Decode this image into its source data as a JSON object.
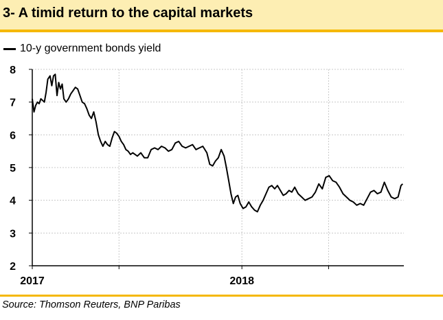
{
  "header": {
    "title": "3- A timid return to the capital markets"
  },
  "legend": {
    "label": "10-y government bonds yield"
  },
  "footer": {
    "source": "Source: Thomson Reuters, BNP Paribas"
  },
  "colors": {
    "accent": "#f5b800",
    "title_bg": "#fdeeb3",
    "line": "#000000",
    "grid": "#c8c8c8"
  },
  "chart_data": {
    "type": "line",
    "title": "",
    "xlabel": "",
    "ylabel": "",
    "ylim": [
      2,
      8
    ],
    "yticks": [
      2,
      3,
      4,
      5,
      6,
      7,
      8
    ],
    "xlim": [
      "2017-01-01",
      "2018-10-10"
    ],
    "xtick_labels": [
      "2017",
      "2018"
    ],
    "xtick_dates": [
      "2017-01-01",
      "2018-01-01"
    ],
    "xgrid_dates": [
      "2017-01-01",
      "2017-06-01",
      "2018-01-01",
      "2018-06-01"
    ],
    "grid": true,
    "legend_position": "top-left",
    "series": [
      {
        "name": "10-y government bonds yield",
        "x": [
          "2017-01-01",
          "2017-01-04",
          "2017-01-07",
          "2017-01-10",
          "2017-01-13",
          "2017-01-16",
          "2017-01-19",
          "2017-01-22",
          "2017-01-25",
          "2017-01-28",
          "2017-02-01",
          "2017-02-04",
          "2017-02-07",
          "2017-02-10",
          "2017-02-13",
          "2017-02-16",
          "2017-02-19",
          "2017-02-22",
          "2017-02-25",
          "2017-03-01",
          "2017-03-05",
          "2017-03-09",
          "2017-03-13",
          "2017-03-17",
          "2017-03-21",
          "2017-03-25",
          "2017-03-29",
          "2017-04-02",
          "2017-04-06",
          "2017-04-10",
          "2017-04-14",
          "2017-04-18",
          "2017-04-22",
          "2017-04-26",
          "2017-04-30",
          "2017-05-04",
          "2017-05-08",
          "2017-05-12",
          "2017-05-16",
          "2017-05-20",
          "2017-05-24",
          "2017-05-28",
          "2017-06-01",
          "2017-06-05",
          "2017-06-09",
          "2017-06-13",
          "2017-06-17",
          "2017-06-21",
          "2017-06-25",
          "2017-06-29",
          "2017-07-03",
          "2017-07-09",
          "2017-07-15",
          "2017-07-21",
          "2017-07-27",
          "2017-08-02",
          "2017-08-08",
          "2017-08-14",
          "2017-08-20",
          "2017-08-26",
          "2017-09-01",
          "2017-09-07",
          "2017-09-13",
          "2017-09-19",
          "2017-09-25",
          "2017-10-01",
          "2017-10-07",
          "2017-10-13",
          "2017-10-19",
          "2017-10-25",
          "2017-11-01",
          "2017-11-06",
          "2017-11-11",
          "2017-11-16",
          "2017-11-21",
          "2017-11-26",
          "2017-12-01",
          "2017-12-05",
          "2017-12-09",
          "2017-12-13",
          "2017-12-17",
          "2017-12-21",
          "2017-12-25",
          "2017-12-29",
          "2018-01-03",
          "2018-01-08",
          "2018-01-13",
          "2018-01-18",
          "2018-01-23",
          "2018-01-28",
          "2018-02-02",
          "2018-02-07",
          "2018-02-12",
          "2018-02-17",
          "2018-02-22",
          "2018-02-27",
          "2018-03-04",
          "2018-03-09",
          "2018-03-14",
          "2018-03-19",
          "2018-03-24",
          "2018-03-29",
          "2018-04-03",
          "2018-04-09",
          "2018-04-15",
          "2018-04-21",
          "2018-04-27",
          "2018-05-03",
          "2018-05-09",
          "2018-05-15",
          "2018-05-21",
          "2018-05-27",
          "2018-06-02",
          "2018-06-08",
          "2018-06-14",
          "2018-06-20",
          "2018-06-26",
          "2018-07-02",
          "2018-07-08",
          "2018-07-14",
          "2018-07-20",
          "2018-07-26",
          "2018-08-01",
          "2018-08-07",
          "2018-08-13",
          "2018-08-19",
          "2018-08-25",
          "2018-08-31",
          "2018-09-06",
          "2018-09-12",
          "2018-09-18",
          "2018-09-24",
          "2018-09-30",
          "2018-10-05",
          "2018-10-08"
        ],
        "values": [
          7.1,
          6.7,
          6.9,
          7.0,
          6.95,
          7.1,
          7.05,
          7.0,
          7.3,
          7.7,
          7.8,
          7.5,
          7.8,
          7.85,
          7.2,
          7.6,
          7.4,
          7.55,
          7.1,
          7.0,
          7.1,
          7.25,
          7.35,
          7.45,
          7.4,
          7.2,
          7.0,
          6.95,
          6.8,
          6.6,
          6.5,
          6.7,
          6.4,
          6.0,
          5.8,
          5.65,
          5.8,
          5.7,
          5.65,
          5.9,
          6.1,
          6.05,
          5.95,
          5.8,
          5.7,
          5.55,
          5.5,
          5.4,
          5.45,
          5.4,
          5.35,
          5.45,
          5.3,
          5.3,
          5.55,
          5.6,
          5.55,
          5.65,
          5.6,
          5.5,
          5.55,
          5.75,
          5.8,
          5.65,
          5.6,
          5.65,
          5.7,
          5.55,
          5.6,
          5.65,
          5.45,
          5.1,
          5.05,
          5.2,
          5.3,
          5.55,
          5.35,
          5.0,
          4.6,
          4.2,
          3.9,
          4.1,
          4.15,
          3.9,
          3.75,
          3.8,
          3.95,
          3.8,
          3.7,
          3.65,
          3.85,
          4.0,
          4.2,
          4.4,
          4.45,
          4.35,
          4.45,
          4.3,
          4.15,
          4.2,
          4.3,
          4.25,
          4.4,
          4.2,
          4.1,
          4.0,
          4.05,
          4.1,
          4.25,
          4.5,
          4.35,
          4.7,
          4.75,
          4.6,
          4.55,
          4.4,
          4.2,
          4.1,
          4.0,
          3.95,
          3.85,
          3.9,
          3.85,
          4.05,
          4.25,
          4.3,
          4.2,
          4.25,
          4.55,
          4.3,
          4.1,
          4.05,
          4.1,
          4.45,
          4.5
        ]
      }
    ]
  }
}
